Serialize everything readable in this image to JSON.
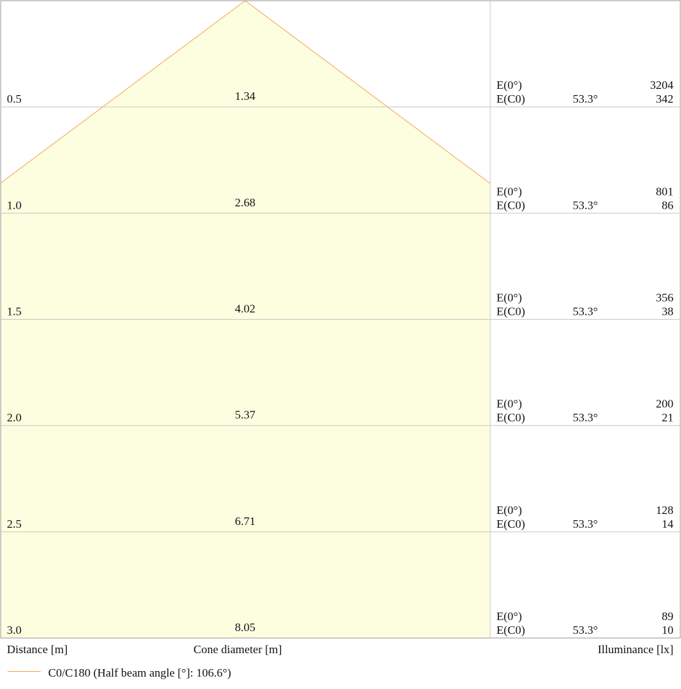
{
  "chart_data": {
    "type": "area",
    "distance_unit_label": "Distance [m]",
    "cone_label": "Cone diameter [m]",
    "illuminance_label": "Illuminance [lx]",
    "center_label": "E(0°)",
    "edge_label": "E(C0)",
    "rows": [
      {
        "distance": "0.5",
        "cone_diameter": "1.34",
        "e_center": "3204",
        "edge_angle": "53.3°",
        "e_edge": "342"
      },
      {
        "distance": "1.0",
        "cone_diameter": "2.68",
        "e_center": "801",
        "edge_angle": "53.3°",
        "e_edge": "86"
      },
      {
        "distance": "1.5",
        "cone_diameter": "4.02",
        "e_center": "356",
        "edge_angle": "53.3°",
        "e_edge": "38"
      },
      {
        "distance": "2.0",
        "cone_diameter": "5.37",
        "e_center": "200",
        "edge_angle": "53.3°",
        "e_edge": "21"
      },
      {
        "distance": "2.5",
        "cone_diameter": "6.71",
        "e_center": "128",
        "edge_angle": "53.3°",
        "e_edge": "14"
      },
      {
        "distance": "3.0",
        "cone_diameter": "8.05",
        "e_center": "89",
        "edge_angle": "53.3°",
        "e_edge": "10"
      }
    ],
    "ylim": [
      0,
      3.0
    ],
    "series": [
      {
        "name": "C0/C180",
        "half_beam_angle_deg": 106.6,
        "color": "#f2a65a",
        "fill": "#fdfde0"
      }
    ],
    "legend": {
      "label": "C0/C180 (Half beam angle [°]: 106.6°)",
      "position": "bottom-left"
    }
  },
  "colors": {
    "grid": "#c8c8c8",
    "border": "#9a9a9a",
    "cone_line": "#f2a65a",
    "cone_fill": "#fdfde0"
  }
}
